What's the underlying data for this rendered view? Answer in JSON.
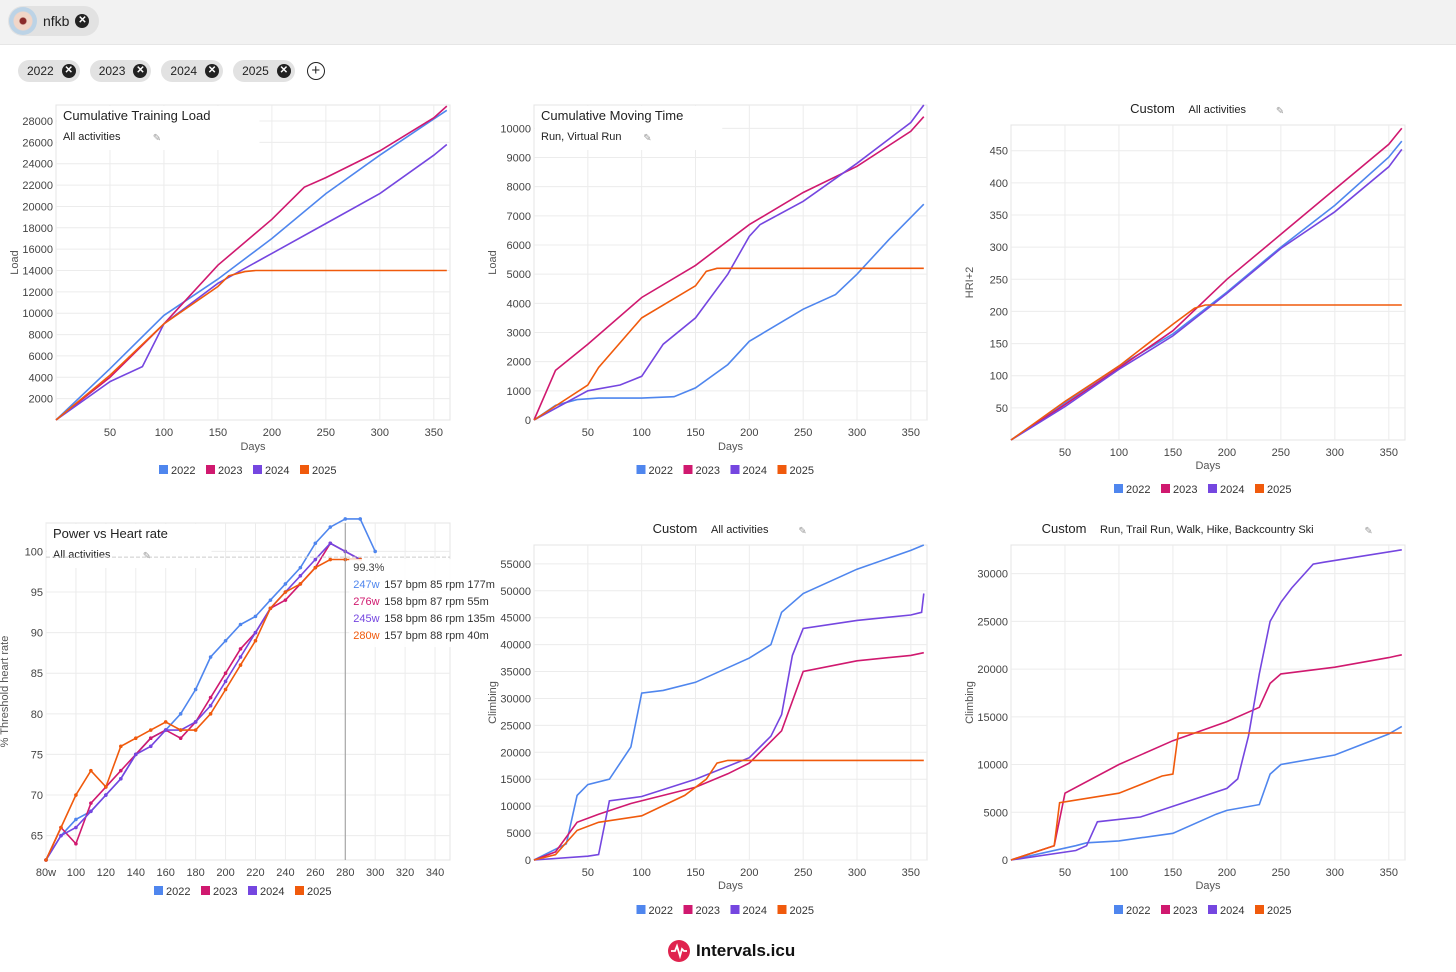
{
  "athlete": {
    "name": "nfkb"
  },
  "year_filters": [
    "2022",
    "2023",
    "2024",
    "2025"
  ],
  "brand": "Intervals.icu",
  "colors": {
    "2022": "#4f86ee",
    "2023": "#d0196f",
    "2024": "#7546e0",
    "2025": "#f05a0c"
  },
  "chart_data": [
    {
      "type": "line",
      "title": "Cumulative Training Load",
      "subtitle": "All activities",
      "xlabel": "Days",
      "ylabel": "Load",
      "xlim": [
        0,
        365
      ],
      "ylim": [
        0,
        29500
      ],
      "xticks": [
        50,
        100,
        150,
        200,
        250,
        300,
        350
      ],
      "yticks": [
        2000,
        4000,
        6000,
        8000,
        10000,
        12000,
        14000,
        16000,
        18000,
        20000,
        22000,
        24000,
        26000,
        28000
      ],
      "legend": [
        "2022",
        "2023",
        "2024",
        "2025"
      ],
      "series": [
        {
          "name": "2022",
          "x": [
            0,
            50,
            100,
            150,
            200,
            250,
            300,
            350,
            362
          ],
          "y": [
            0,
            4800,
            9800,
            13200,
            17000,
            21200,
            24800,
            28200,
            29000
          ]
        },
        {
          "name": "2023",
          "x": [
            0,
            50,
            100,
            150,
            200,
            230,
            250,
            300,
            350,
            362
          ],
          "y": [
            0,
            4000,
            9000,
            14500,
            18800,
            21800,
            22700,
            25200,
            28300,
            29400
          ]
        },
        {
          "name": "2024",
          "x": [
            0,
            50,
            80,
            100,
            150,
            200,
            250,
            300,
            350,
            362
          ],
          "y": [
            0,
            3600,
            5000,
            9000,
            12800,
            15600,
            18400,
            21200,
            24800,
            25800
          ]
        },
        {
          "name": "2025",
          "x": [
            0,
            50,
            100,
            150,
            160,
            175,
            185,
            362
          ],
          "y": [
            0,
            4200,
            9000,
            12500,
            13500,
            13900,
            14000,
            14000
          ]
        }
      ]
    },
    {
      "type": "line",
      "title": "Cumulative Moving Time",
      "subtitle": "Run, Virtual Run",
      "xlabel": "Days",
      "ylabel": "Load",
      "xlim": [
        0,
        365
      ],
      "ylim": [
        0,
        10800
      ],
      "xticks": [
        50,
        100,
        150,
        200,
        250,
        300,
        350
      ],
      "yticks": [
        0,
        1000,
        2000,
        3000,
        4000,
        5000,
        6000,
        7000,
        8000,
        9000,
        10000
      ],
      "legend": [
        "2022",
        "2023",
        "2024",
        "2025"
      ],
      "series": [
        {
          "name": "2022",
          "x": [
            0,
            20,
            40,
            60,
            100,
            130,
            150,
            180,
            200,
            250,
            280,
            300,
            330,
            362
          ],
          "y": [
            0,
            500,
            700,
            750,
            750,
            800,
            1100,
            1900,
            2700,
            3800,
            4300,
            5000,
            6200,
            7400
          ]
        },
        {
          "name": "2023",
          "x": [
            0,
            20,
            50,
            100,
            150,
            200,
            250,
            300,
            350,
            362
          ],
          "y": [
            0,
            1700,
            2600,
            4200,
            5300,
            6700,
            7800,
            8700,
            9900,
            10400
          ]
        },
        {
          "name": "2024",
          "x": [
            0,
            50,
            80,
            100,
            120,
            150,
            180,
            200,
            210,
            250,
            300,
            350,
            362
          ],
          "y": [
            0,
            1000,
            1200,
            1500,
            2600,
            3500,
            5000,
            6300,
            6700,
            7500,
            8800,
            10200,
            10800
          ]
        },
        {
          "name": "2025",
          "x": [
            0,
            50,
            60,
            100,
            150,
            160,
            170,
            362
          ],
          "y": [
            0,
            1200,
            1800,
            3500,
            4600,
            5100,
            5200,
            5200
          ]
        }
      ]
    },
    {
      "type": "line",
      "title": "Custom",
      "subtitle": "All activities",
      "xlabel": "Days",
      "ylabel": "HRI+2",
      "xlim": [
        0,
        365
      ],
      "ylim": [
        0,
        490
      ],
      "xticks": [
        50,
        100,
        150,
        200,
        250,
        300,
        350
      ],
      "yticks": [
        50,
        100,
        150,
        200,
        250,
        300,
        350,
        400,
        450
      ],
      "legend": [
        "2022",
        "2023",
        "2024",
        "2025"
      ],
      "series": [
        {
          "name": "2022",
          "x": [
            0,
            50,
            100,
            150,
            200,
            250,
            300,
            350,
            362
          ],
          "y": [
            0,
            58,
            115,
            165,
            230,
            300,
            365,
            440,
            465
          ]
        },
        {
          "name": "2023",
          "x": [
            0,
            50,
            100,
            150,
            200,
            250,
            300,
            350,
            362
          ],
          "y": [
            0,
            55,
            112,
            170,
            250,
            320,
            390,
            460,
            485
          ]
        },
        {
          "name": "2024",
          "x": [
            0,
            50,
            100,
            150,
            200,
            250,
            300,
            350,
            362
          ],
          "y": [
            0,
            52,
            110,
            162,
            228,
            298,
            355,
            425,
            452
          ]
        },
        {
          "name": "2025",
          "x": [
            0,
            50,
            100,
            150,
            170,
            180,
            362
          ],
          "y": [
            0,
            60,
            115,
            180,
            205,
            210,
            210
          ]
        }
      ]
    },
    {
      "type": "line",
      "title": "Power vs Heart rate",
      "subtitle": "All activities",
      "xlabel": "",
      "ylabel": "% Threshold heart rate",
      "xlim": [
        80,
        350
      ],
      "ylim": [
        62,
        103.5
      ],
      "xtick_labels": [
        "80w",
        "100",
        "120",
        "140",
        "160",
        "180",
        "200",
        "220",
        "240",
        "260",
        "280",
        "300",
        "320",
        "340"
      ],
      "xticks": [
        80,
        100,
        120,
        140,
        160,
        180,
        200,
        220,
        240,
        260,
        280,
        300,
        320,
        340
      ],
      "yticks": [
        65,
        70,
        75,
        80,
        85,
        90,
        95,
        100
      ],
      "legend": [
        "2022",
        "2023",
        "2024",
        "2025"
      ],
      "cursor_x": 280,
      "tooltip": {
        "header": "99.3%",
        "rows": [
          {
            "series": "2022",
            "watts": "247w",
            "detail": "157 bpm 85 rpm 177m"
          },
          {
            "series": "2023",
            "watts": "276w",
            "detail": "158 bpm 87 rpm 55m"
          },
          {
            "series": "2024",
            "watts": "245w",
            "detail": "158 bpm 86 rpm 135m"
          },
          {
            "series": "2025",
            "watts": "280w",
            "detail": "157 bpm 88 rpm 40m"
          }
        ]
      },
      "series": [
        {
          "name": "2022",
          "x": [
            80,
            90,
            100,
            110,
            120,
            130,
            140,
            150,
            160,
            170,
            180,
            190,
            200,
            210,
            220,
            230,
            240,
            250,
            260,
            270,
            280,
            290,
            300
          ],
          "y": [
            62,
            65,
            67,
            68,
            70,
            72,
            75,
            77,
            78,
            80,
            83,
            87,
            89,
            91,
            92,
            94,
            96,
            98,
            101,
            103,
            104,
            104,
            100
          ]
        },
        {
          "name": "2023",
          "x": [
            80,
            90,
            100,
            110,
            120,
            130,
            140,
            150,
            160,
            170,
            180,
            190,
            200,
            210,
            220,
            230,
            240,
            250,
            260,
            270,
            280,
            290
          ],
          "y": [
            62,
            66,
            64,
            69,
            71,
            73,
            75,
            77,
            78,
            77,
            79,
            82,
            85,
            88,
            90,
            93,
            94,
            96,
            98,
            101,
            100,
            99
          ]
        },
        {
          "name": "2024",
          "x": [
            80,
            90,
            100,
            110,
            120,
            130,
            140,
            150,
            160,
            170,
            180,
            190,
            200,
            210,
            220,
            230,
            240,
            250,
            260,
            270,
            280,
            290
          ],
          "y": [
            62,
            65,
            66,
            68,
            70,
            72,
            75,
            76,
            78,
            78,
            79,
            81,
            84,
            87,
            90,
            93,
            95,
            97,
            99,
            101,
            100,
            99
          ]
        },
        {
          "name": "2025",
          "x": [
            80,
            90,
            100,
            110,
            120,
            130,
            140,
            150,
            160,
            170,
            180,
            190,
            200,
            210,
            220,
            230,
            240,
            250,
            260,
            270,
            280,
            290
          ],
          "y": [
            62,
            66,
            70,
            73,
            71,
            76,
            77,
            78,
            79,
            78,
            78,
            80,
            83,
            86,
            89,
            93,
            95,
            96,
            98,
            99,
            99,
            99
          ]
        }
      ]
    },
    {
      "type": "line",
      "title": "Custom",
      "subtitle": "All activities",
      "xlabel": "Days",
      "ylabel": "Climbing",
      "xlim": [
        0,
        365
      ],
      "ylim": [
        0,
        58500
      ],
      "xticks": [
        50,
        100,
        150,
        200,
        250,
        300,
        350
      ],
      "yticks": [
        0,
        5000,
        10000,
        15000,
        20000,
        25000,
        30000,
        35000,
        40000,
        45000,
        50000,
        55000
      ],
      "legend": [
        "2022",
        "2023",
        "2024",
        "2025"
      ],
      "series": [
        {
          "name": "2022",
          "x": [
            0,
            30,
            40,
            50,
            70,
            90,
            100,
            120,
            150,
            200,
            220,
            230,
            250,
            300,
            350,
            362
          ],
          "y": [
            0,
            3000,
            12000,
            14000,
            15000,
            21000,
            31000,
            31500,
            33000,
            37500,
            40000,
            46000,
            49500,
            54000,
            57500,
            58500
          ]
        },
        {
          "name": "2023",
          "x": [
            0,
            20,
            40,
            60,
            90,
            120,
            150,
            180,
            200,
            230,
            250,
            300,
            350,
            362
          ],
          "y": [
            0,
            1500,
            7000,
            8500,
            10500,
            12000,
            13500,
            16000,
            18000,
            24000,
            35000,
            37000,
            38000,
            38500
          ]
        },
        {
          "name": "2024",
          "x": [
            0,
            50,
            60,
            70,
            100,
            150,
            200,
            220,
            230,
            240,
            250,
            300,
            350,
            360,
            362
          ],
          "y": [
            0,
            700,
            1000,
            11000,
            11800,
            15000,
            19000,
            23000,
            27000,
            38000,
            43000,
            44500,
            45500,
            46000,
            49500
          ]
        },
        {
          "name": "2025",
          "x": [
            0,
            20,
            40,
            60,
            100,
            140,
            160,
            170,
            180,
            362
          ],
          "y": [
            0,
            1000,
            5500,
            7000,
            8200,
            12000,
            15000,
            18000,
            18500,
            18500
          ]
        }
      ]
    },
    {
      "type": "line",
      "title": "Custom",
      "subtitle": "Run, Trail Run, Walk, Hike, Backcountry Ski",
      "xlabel": "Days",
      "ylabel": "Climbing",
      "xlim": [
        0,
        365
      ],
      "ylim": [
        0,
        33000
      ],
      "xticks": [
        50,
        100,
        150,
        200,
        250,
        300,
        350
      ],
      "yticks": [
        0,
        5000,
        10000,
        15000,
        20000,
        25000,
        30000
      ],
      "legend": [
        "2022",
        "2023",
        "2024",
        "2025"
      ],
      "series": [
        {
          "name": "2022",
          "x": [
            0,
            60,
            70,
            100,
            150,
            190,
            200,
            230,
            240,
            250,
            300,
            350,
            362
          ],
          "y": [
            0,
            1500,
            1800,
            2000,
            2800,
            4800,
            5200,
            5800,
            9000,
            10000,
            11000,
            13200,
            14000
          ]
        },
        {
          "name": "2023",
          "x": [
            0,
            40,
            50,
            100,
            150,
            200,
            230,
            240,
            250,
            300,
            350,
            362
          ],
          "y": [
            0,
            1500,
            7000,
            10000,
            12500,
            14500,
            16000,
            18500,
            19500,
            20200,
            21200,
            21500
          ]
        },
        {
          "name": "2024",
          "x": [
            0,
            60,
            70,
            80,
            120,
            200,
            210,
            220,
            230,
            240,
            250,
            260,
            280,
            290,
            362
          ],
          "y": [
            0,
            1000,
            1500,
            4000,
            4500,
            7500,
            8500,
            13000,
            19500,
            25000,
            27000,
            28500,
            31000,
            31200,
            32500
          ]
        },
        {
          "name": "2025",
          "x": [
            0,
            40,
            45,
            100,
            140,
            150,
            155,
            362
          ],
          "y": [
            0,
            1500,
            6000,
            7000,
            8800,
            9000,
            13300,
            13300
          ]
        }
      ]
    }
  ]
}
